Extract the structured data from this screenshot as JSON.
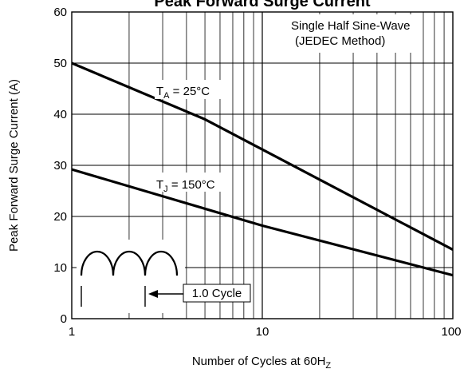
{
  "chart_data": {
    "type": "line",
    "title": "Peak Forward Surge Current",
    "xlabel": "Number of Cycles at 60Hz",
    "xlabel_main": "Number of Cycles at 60H",
    "xlabel_sub": "Z",
    "ylabel": "Peak Forward Surge Current (A)",
    "x_scale": "log",
    "xlim": [
      1,
      100
    ],
    "ylim": [
      0,
      60
    ],
    "x_ticks": [
      1,
      10,
      100
    ],
    "x_tick_labels": [
      "1",
      "10",
      "100"
    ],
    "y_ticks": [
      0,
      10,
      20,
      30,
      40,
      50,
      60
    ],
    "y_tick_labels": [
      "0",
      "10",
      "20",
      "30",
      "40",
      "50",
      "60"
    ],
    "grid": true,
    "series": [
      {
        "name": "TA = 25°C",
        "label_main": "T",
        "label_sub": "A",
        "label_rest": " = 25°C",
        "x": [
          1,
          5,
          100
        ],
        "y": [
          50,
          39,
          13.5
        ]
      },
      {
        "name": "TJ = 150°C",
        "label_main": "T",
        "label_sub": "J",
        "label_rest": " = 150°C",
        "x": [
          1,
          10,
          100
        ],
        "y": [
          29.2,
          18.2,
          8.5
        ]
      }
    ],
    "annotations": {
      "note_line1": "Single Half Sine-Wave",
      "note_line2": "(JEDEC Method)",
      "cycle_label": "1.0 Cycle"
    }
  }
}
